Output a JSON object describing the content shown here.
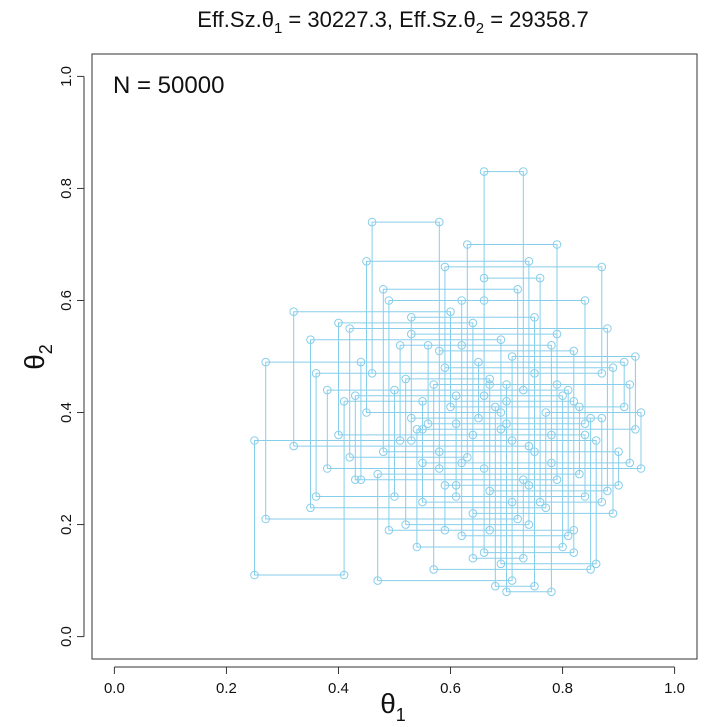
{
  "chart_data": {
    "type": "line",
    "title_parts": {
      "left_prefix": "Eff.Sz.θ",
      "left_sub": "1",
      "left_value": " = 30227.3, ",
      "right_prefix": "Eff.Sz.θ",
      "right_sub": "2",
      "right_value": " = 29358.7"
    },
    "xlabel_symbol": "θ",
    "xlabel_sub": "1",
    "ylabel_symbol": "θ",
    "ylabel_sub": "2",
    "annotation": "N = 50000",
    "xlim": [
      -0.04,
      1.04
    ],
    "ylim": [
      -0.04,
      1.04
    ],
    "x_ticks": [
      0.0,
      0.2,
      0.4,
      0.6,
      0.8,
      1.0
    ],
    "y_ticks": [
      0.0,
      0.2,
      0.4,
      0.6,
      0.8,
      1.0
    ],
    "x_tick_labels": [
      "0.0",
      "0.2",
      "0.4",
      "0.6",
      "0.8",
      "1.0"
    ],
    "y_tick_labels": [
      "0.0",
      "0.2",
      "0.4",
      "0.6",
      "0.8",
      "1.0"
    ],
    "series_color": "#87CEEB",
    "marker": "open-circle",
    "path_style": "gibbs-steps",
    "series": [
      {
        "points": [
          [
            0.7,
            0.45
          ],
          [
            0.7,
            0.38
          ],
          [
            0.56,
            0.38
          ],
          [
            0.56,
            0.52
          ],
          [
            0.78,
            0.52
          ],
          [
            0.78,
            0.31
          ],
          [
            0.62,
            0.31
          ],
          [
            0.62,
            0.6
          ],
          [
            0.66,
            0.6
          ],
          [
            0.66,
            0.83
          ],
          [
            0.73,
            0.83
          ],
          [
            0.73,
            0.44
          ],
          [
            0.5,
            0.44
          ],
          [
            0.5,
            0.25
          ],
          [
            0.84,
            0.25
          ],
          [
            0.84,
            0.36
          ],
          [
            0.64,
            0.36
          ],
          [
            0.64,
            0.14
          ],
          [
            0.73,
            0.14
          ],
          [
            0.73,
            0.28
          ],
          [
            0.44,
            0.28
          ],
          [
            0.44,
            0.49
          ],
          [
            0.91,
            0.49
          ],
          [
            0.91,
            0.41
          ],
          [
            0.68,
            0.41
          ],
          [
            0.68,
            0.09
          ],
          [
            0.75,
            0.09
          ],
          [
            0.75,
            0.57
          ],
          [
            0.53,
            0.57
          ],
          [
            0.53,
            0.35
          ],
          [
            0.25,
            0.35
          ],
          [
            0.25,
            0.11
          ],
          [
            0.41,
            0.11
          ],
          [
            0.41,
            0.42
          ],
          [
            0.82,
            0.42
          ],
          [
            0.82,
            0.19
          ],
          [
            0.59,
            0.19
          ],
          [
            0.59,
            0.66
          ],
          [
            0.87,
            0.66
          ],
          [
            0.87,
            0.47
          ],
          [
            0.46,
            0.47
          ],
          [
            0.46,
            0.74
          ],
          [
            0.58,
            0.74
          ],
          [
            0.58,
            0.3
          ],
          [
            0.94,
            0.3
          ],
          [
            0.94,
            0.4
          ],
          [
            0.77,
            0.4
          ],
          [
            0.77,
            0.23
          ],
          [
            0.35,
            0.23
          ],
          [
            0.35,
            0.53
          ],
          [
            0.69,
            0.53
          ],
          [
            0.69,
            0.37
          ],
          [
            0.54,
            0.37
          ],
          [
            0.54,
            0.16
          ],
          [
            0.8,
            0.16
          ],
          [
            0.8,
            0.43
          ],
          [
            0.61,
            0.43
          ],
          [
            0.61,
            0.27
          ],
          [
            0.9,
            0.27
          ],
          [
            0.9,
            0.33
          ],
          [
            0.48,
            0.33
          ],
          [
            0.48,
            0.62
          ],
          [
            0.72,
            0.62
          ],
          [
            0.72,
            0.21
          ],
          [
            0.27,
            0.21
          ],
          [
            0.27,
            0.49
          ],
          [
            0.65,
            0.49
          ],
          [
            0.65,
            0.39
          ],
          [
            0.85,
            0.39
          ],
          [
            0.85,
            0.12
          ],
          [
            0.57,
            0.12
          ],
          [
            0.57,
            0.45
          ],
          [
            0.79,
            0.45
          ],
          [
            0.79,
            0.7
          ],
          [
            0.63,
            0.7
          ],
          [
            0.63,
            0.32
          ],
          [
            0.42,
            0.32
          ],
          [
            0.42,
            0.55
          ],
          [
            0.88,
            0.55
          ],
          [
            0.88,
            0.26
          ],
          [
            0.67,
            0.26
          ],
          [
            0.67,
            0.46
          ],
          [
            0.52,
            0.46
          ],
          [
            0.52,
            0.2
          ],
          [
            0.74,
            0.2
          ],
          [
            0.74,
            0.34
          ],
          [
            0.32,
            0.34
          ],
          [
            0.32,
            0.58
          ],
          [
            0.6,
            0.58
          ],
          [
            0.6,
            0.41
          ],
          [
            0.83,
            0.41
          ],
          [
            0.83,
            0.29
          ],
          [
            0.47,
            0.29
          ],
          [
            0.47,
            0.1
          ],
          [
            0.71,
            0.1
          ],
          [
            0.71,
            0.5
          ],
          [
            0.93,
            0.5
          ],
          [
            0.93,
            0.37
          ],
          [
            0.55,
            0.37
          ],
          [
            0.55,
            0.24
          ],
          [
            0.76,
            0.24
          ],
          [
            0.76,
            0.64
          ],
          [
            0.66,
            0.64
          ],
          [
            0.66,
            0.3
          ],
          [
            0.38,
            0.3
          ],
          [
            0.38,
            0.44
          ],
          [
            0.81,
            0.44
          ],
          [
            0.81,
            0.18
          ],
          [
            0.62,
            0.18
          ],
          [
            0.62,
            0.52
          ],
          [
            0.51,
            0.52
          ],
          [
            0.51,
            0.35
          ],
          [
            0.86,
            0.35
          ],
          [
            0.86,
            0.13
          ],
          [
            0.69,
            0.13
          ],
          [
            0.69,
            0.4
          ],
          [
            0.45,
            0.4
          ],
          [
            0.45,
            0.67
          ],
          [
            0.74,
            0.67
          ],
          [
            0.74,
            0.27
          ],
          [
            0.59,
            0.27
          ],
          [
            0.59,
            0.48
          ],
          [
            0.89,
            0.48
          ],
          [
            0.89,
            0.22
          ],
          [
            0.64,
            0.22
          ],
          [
            0.64,
            0.56
          ],
          [
            0.4,
            0.56
          ],
          [
            0.4,
            0.36
          ],
          [
            0.78,
            0.36
          ],
          [
            0.78,
            0.08
          ],
          [
            0.7,
            0.08
          ],
          [
            0.7,
            0.42
          ],
          [
            0.55,
            0.42
          ],
          [
            0.55,
            0.31
          ],
          [
            0.92,
            0.31
          ],
          [
            0.92,
            0.45
          ],
          [
            0.67,
            0.45
          ],
          [
            0.67,
            0.19
          ],
          [
            0.49,
            0.19
          ],
          [
            0.49,
            0.6
          ],
          [
            0.84,
            0.6
          ],
          [
            0.84,
            0.38
          ],
          [
            0.61,
            0.38
          ],
          [
            0.61,
            0.25
          ],
          [
            0.36,
            0.25
          ],
          [
            0.36,
            0.47
          ],
          [
            0.75,
            0.47
          ],
          [
            0.75,
            0.33
          ],
          [
            0.58,
            0.33
          ],
          [
            0.58,
            0.51
          ],
          [
            0.82,
            0.51
          ],
          [
            0.82,
            0.15
          ],
          [
            0.66,
            0.15
          ],
          [
            0.66,
            0.43
          ],
          [
            0.43,
            0.43
          ],
          [
            0.43,
            0.28
          ],
          [
            0.79,
            0.28
          ],
          [
            0.79,
            0.54
          ],
          [
            0.53,
            0.54
          ],
          [
            0.53,
            0.39
          ],
          [
            0.87,
            0.39
          ],
          [
            0.87,
            0.24
          ],
          [
            0.71,
            0.24
          ],
          [
            0.71,
            0.35
          ]
        ]
      }
    ]
  }
}
